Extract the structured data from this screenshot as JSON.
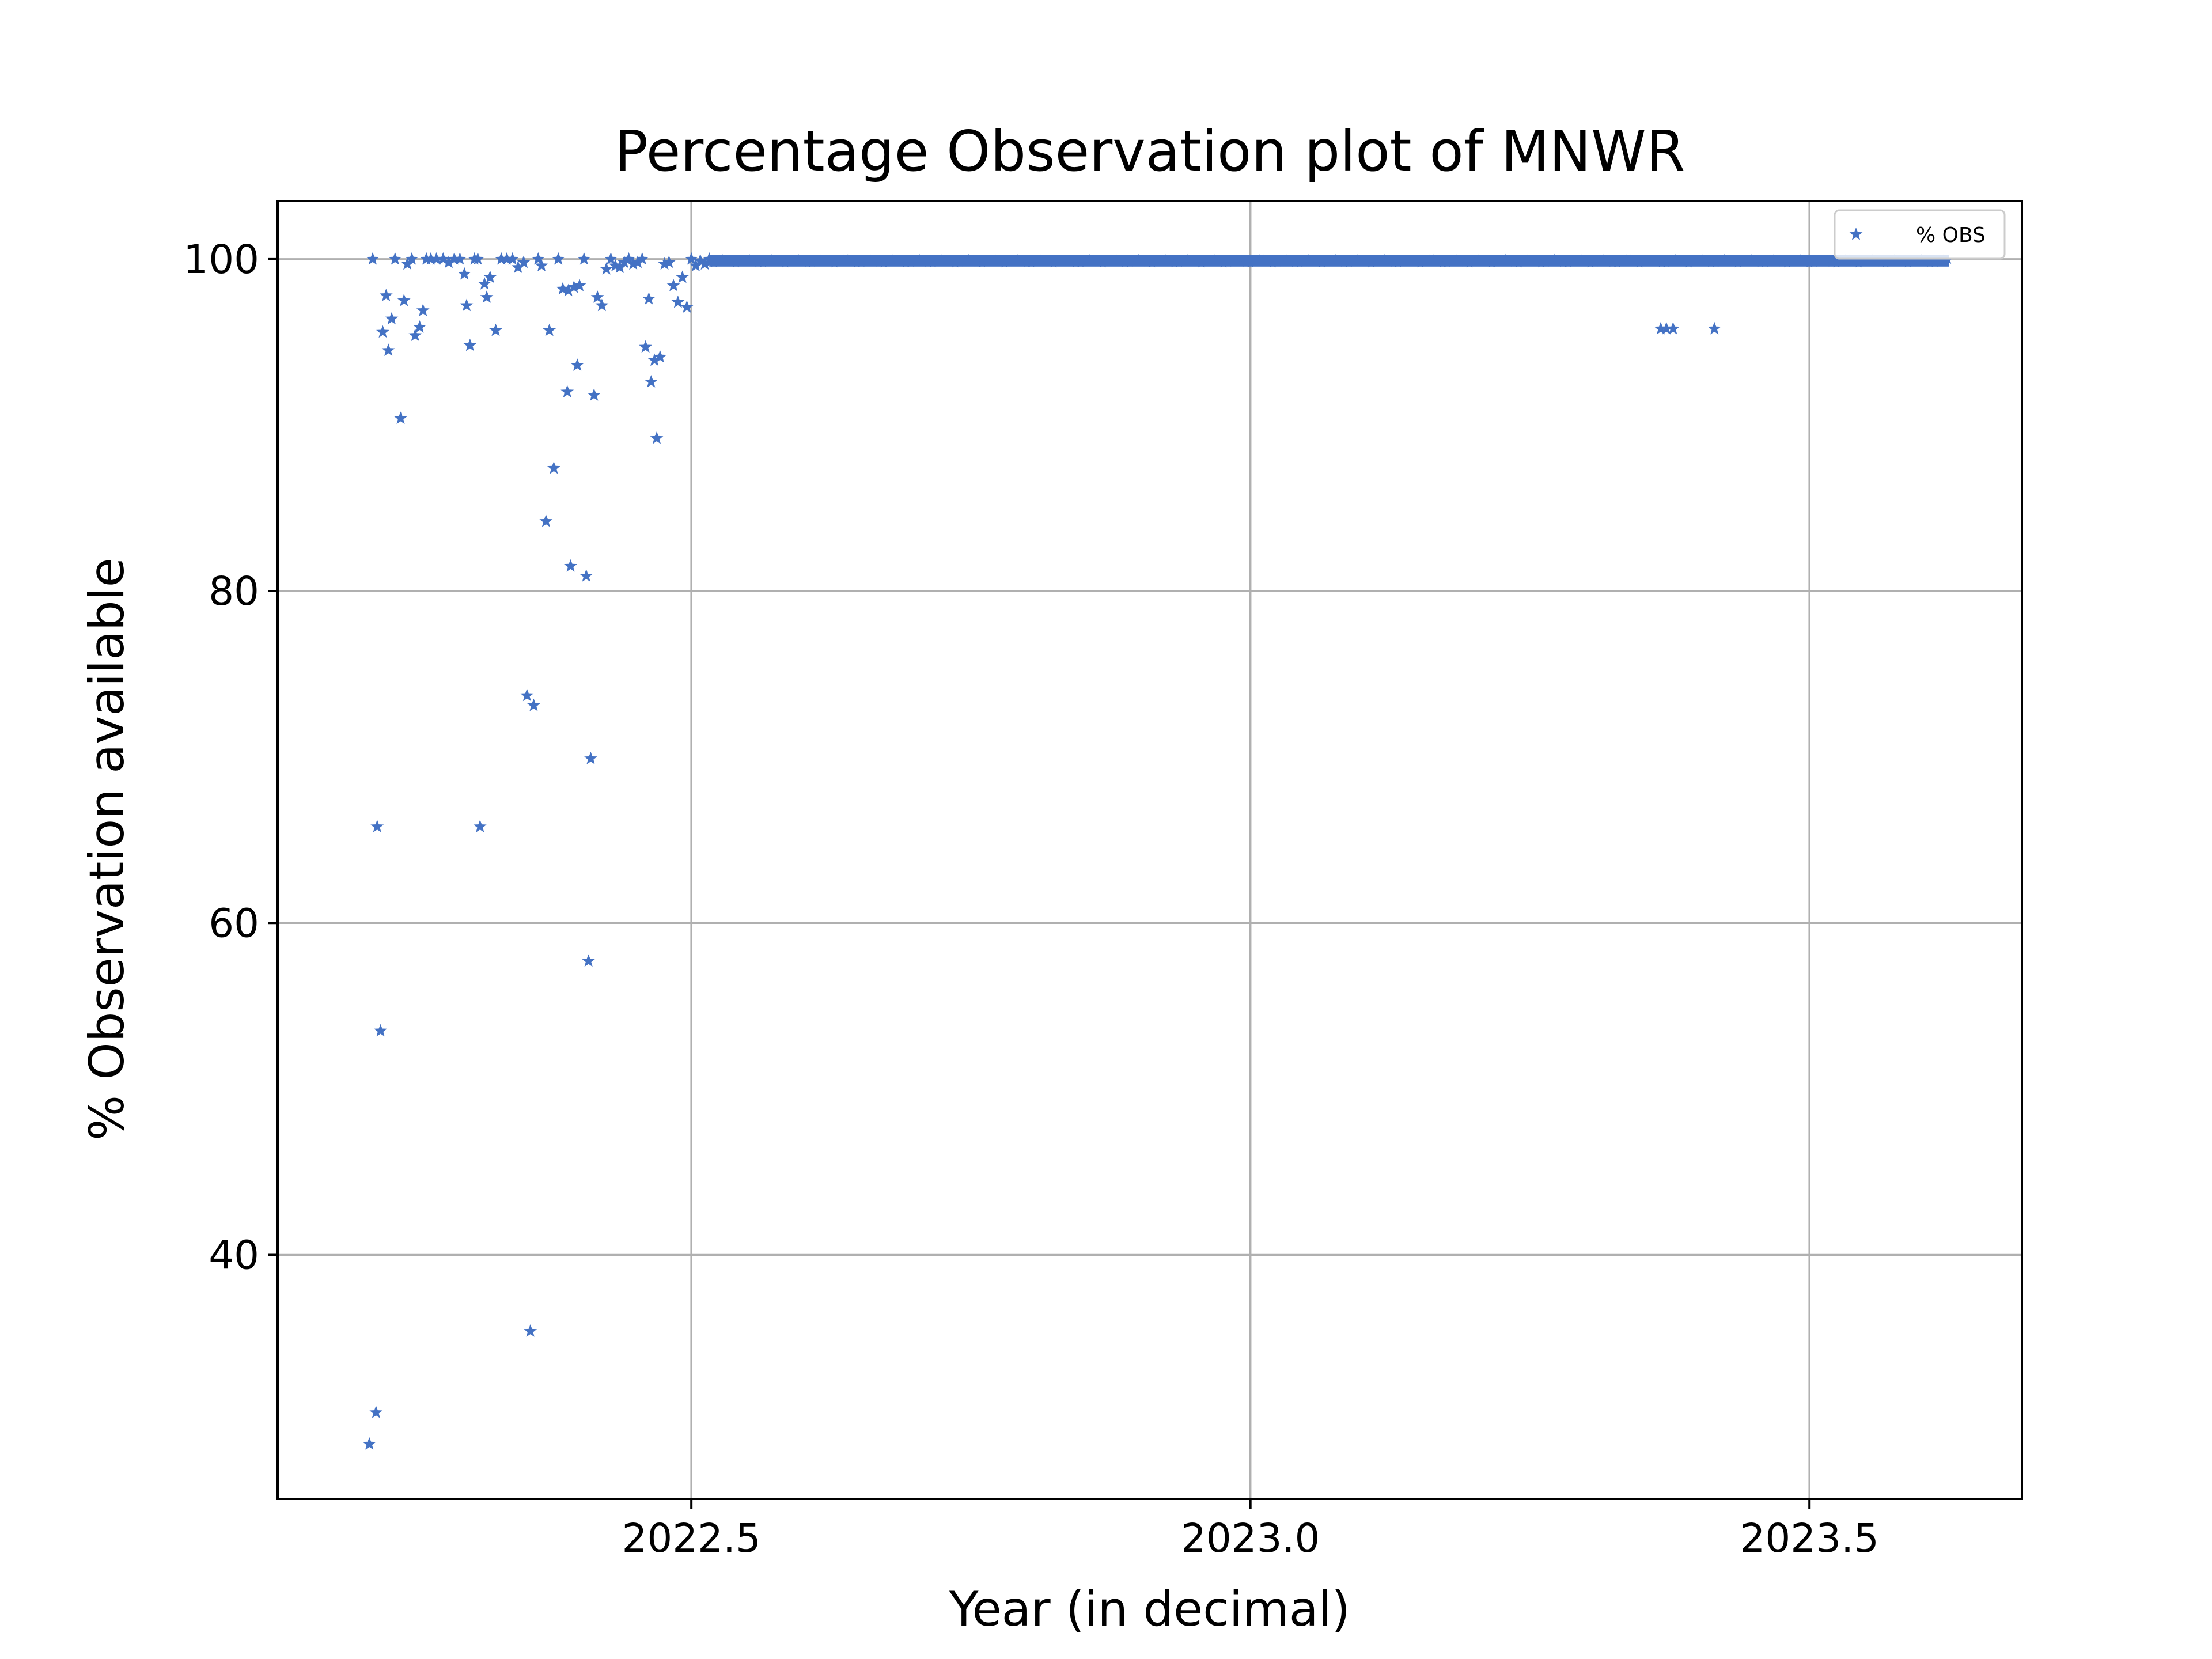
{
  "chart_data": {
    "type": "scatter",
    "title": "Percentage Observation plot of MNWR",
    "xlabel": "Year (in decimal)",
    "ylabel": "% Observation available",
    "xlim": [
      2022.13,
      2023.69
    ],
    "ylim": [
      25.3,
      103.5
    ],
    "x_ticks": [
      2022.5,
      2023.0,
      2023.5
    ],
    "x_tick_labels": [
      "2022.5",
      "2023.0",
      "2023.5"
    ],
    "y_ticks": [
      40,
      60,
      80,
      100
    ],
    "y_tick_labels": [
      "40",
      "60",
      "80",
      "100"
    ],
    "grid": true,
    "legend": {
      "position": "top-right",
      "entries": [
        "% OBS"
      ]
    },
    "colors": {
      "series": "#4472c4",
      "grid": "#b0b0b0",
      "frame": "#000000"
    },
    "series": [
      {
        "name": "% OBS",
        "marker": "star",
        "points": [
          [
            2022.215,
            100
          ],
          [
            2022.212,
            28.6
          ],
          [
            2022.218,
            30.5
          ],
          [
            2022.219,
            65.8
          ],
          [
            2022.222,
            53.5
          ],
          [
            2022.224,
            95.6
          ],
          [
            2022.227,
            97.8
          ],
          [
            2022.229,
            94.5
          ],
          [
            2022.232,
            96.4
          ],
          [
            2022.235,
            100
          ],
          [
            2022.24,
            90.4
          ],
          [
            2022.243,
            97.5
          ],
          [
            2022.246,
            99.7
          ],
          [
            2022.25,
            100
          ],
          [
            2022.253,
            95.4
          ],
          [
            2022.257,
            95.9
          ],
          [
            2022.26,
            96.9
          ],
          [
            2022.263,
            100
          ],
          [
            2022.267,
            100
          ],
          [
            2022.272,
            100
          ],
          [
            2022.278,
            100
          ],
          [
            2022.283,
            99.8
          ],
          [
            2022.288,
            100
          ],
          [
            2022.293,
            100
          ],
          [
            2022.297,
            99.1
          ],
          [
            2022.299,
            97.2
          ],
          [
            2022.302,
            94.8
          ],
          [
            2022.306,
            100
          ],
          [
            2022.309,
            100
          ],
          [
            2022.311,
            65.8
          ],
          [
            2022.315,
            98.5
          ],
          [
            2022.317,
            97.7
          ],
          [
            2022.32,
            98.9
          ],
          [
            2022.325,
            95.7
          ],
          [
            2022.33,
            100
          ],
          [
            2022.335,
            100
          ],
          [
            2022.34,
            100
          ],
          [
            2022.345,
            99.5
          ],
          [
            2022.35,
            99.8
          ],
          [
            2022.353,
            73.7
          ],
          [
            2022.356,
            35.4
          ],
          [
            2022.359,
            73.1
          ],
          [
            2022.363,
            100
          ],
          [
            2022.366,
            99.6
          ],
          [
            2022.37,
            84.2
          ],
          [
            2022.373,
            95.7
          ],
          [
            2022.377,
            87.4
          ],
          [
            2022.381,
            100
          ],
          [
            2022.385,
            98.2
          ],
          [
            2022.389,
            92.0
          ],
          [
            2022.39,
            98.1
          ],
          [
            2022.392,
            81.5
          ],
          [
            2022.395,
            98.3
          ],
          [
            2022.398,
            93.6
          ],
          [
            2022.4,
            98.4
          ],
          [
            2022.404,
            100
          ],
          [
            2022.406,
            80.9
          ],
          [
            2022.408,
            57.7
          ],
          [
            2022.41,
            69.9
          ],
          [
            2022.413,
            91.8
          ],
          [
            2022.416,
            97.7
          ],
          [
            2022.42,
            97.2
          ],
          [
            2022.424,
            99.4
          ],
          [
            2022.428,
            100
          ],
          [
            2022.432,
            99.6
          ],
          [
            2022.436,
            99.5
          ],
          [
            2022.44,
            99.8
          ],
          [
            2022.444,
            100
          ],
          [
            2022.448,
            99.7
          ],
          [
            2022.452,
            99.8
          ],
          [
            2022.456,
            100
          ],
          [
            2022.459,
            94.7
          ],
          [
            2022.462,
            97.6
          ],
          [
            2022.464,
            92.6
          ],
          [
            2022.467,
            93.9
          ],
          [
            2022.469,
            89.2
          ],
          [
            2022.472,
            94.1
          ],
          [
            2022.476,
            99.7
          ],
          [
            2022.48,
            99.8
          ],
          [
            2022.484,
            98.4
          ],
          [
            2022.488,
            97.4
          ],
          [
            2022.492,
            98.9
          ],
          [
            2022.496,
            97.1
          ],
          [
            2022.5,
            100
          ],
          [
            2022.504,
            99.6
          ],
          [
            2022.508,
            99.9
          ],
          [
            2022.512,
            99.7
          ],
          [
            2022.516,
            100
          ],
          [
            2023.367,
            95.8
          ],
          [
            2023.372,
            95.8
          ],
          [
            2023.378,
            95.8
          ],
          [
            2023.415,
            95.8
          ]
        ],
        "dense_band": {
          "x_range": [
            2022.516,
            2023.625
          ],
          "y": 99.9
        }
      }
    ]
  }
}
